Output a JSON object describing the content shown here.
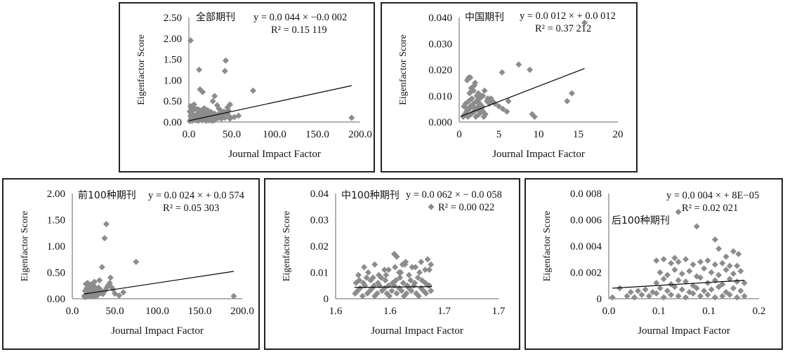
{
  "colors": {
    "marker": "#8c8c8c",
    "trend": "#000000",
    "axis": "#666666",
    "border": "#222222"
  },
  "chart_data": [
    {
      "type": "scatter",
      "title": "全部期刊",
      "equation": "y = 0.0 044 × −0.0 002",
      "r2": "R² = 0.15 119",
      "xlabel": "Journal Impact Factor",
      "ylabel": "Eigenfactor Score",
      "xlim": [
        0,
        200
      ],
      "ylim": [
        0,
        2.5
      ],
      "xticks": [
        "0.0",
        "50.0",
        "100.0",
        "150.0",
        "200.0"
      ],
      "yticks": [
        "0.00",
        "0.50",
        "1.00",
        "1.50",
        "2.00",
        "2.50"
      ],
      "trendline": [
        [
          0,
          0.03
        ],
        [
          190,
          0.87
        ]
      ],
      "x": [
        1,
        2,
        3,
        4,
        5,
        6,
        7,
        8,
        9,
        10,
        11,
        12,
        13,
        14,
        15,
        16,
        17,
        18,
        19,
        20,
        21,
        22,
        23,
        24,
        25,
        26,
        27,
        28,
        29,
        30,
        2,
        3,
        4,
        6,
        8,
        10,
        12,
        14,
        16,
        18,
        20,
        22,
        24,
        26,
        28,
        30,
        32,
        34,
        36,
        38,
        40,
        42,
        45,
        48,
        1,
        5,
        9,
        13,
        17,
        21,
        3,
        7,
        11,
        15,
        19,
        23,
        27,
        2,
        6,
        10,
        14,
        18,
        22,
        26,
        30,
        34,
        4,
        8,
        12,
        16,
        20,
        24,
        28,
        2,
        12,
        13,
        30,
        43,
        42,
        45,
        48,
        46,
        41,
        38,
        30,
        35,
        53,
        48,
        75,
        190,
        58,
        36,
        28,
        33,
        16
      ],
      "y": [
        0.02,
        0.05,
        0.08,
        0.03,
        0.1,
        0.06,
        0.12,
        0.04,
        0.07,
        0.09,
        0.03,
        0.05,
        0.11,
        0.06,
        0.08,
        0.04,
        0.07,
        0.1,
        0.05,
        0.03,
        0.06,
        0.09,
        0.04,
        0.07,
        0.05,
        0.08,
        0.03,
        0.06,
        0.04,
        0.05,
        0.15,
        0.18,
        0.2,
        0.14,
        0.16,
        0.19,
        0.13,
        0.17,
        0.21,
        0.15,
        0.12,
        0.18,
        0.14,
        0.16,
        0.1,
        0.13,
        0.11,
        0.09,
        0.12,
        0.08,
        0.15,
        0.1,
        0.2,
        0.12,
        0.25,
        0.28,
        0.3,
        0.27,
        0.24,
        0.26,
        0.35,
        0.32,
        0.3,
        0.22,
        0.28,
        0.24,
        0.2,
        0.38,
        0.42,
        0.3,
        0.26,
        0.33,
        0.28,
        0.24,
        0.2,
        0.18,
        0.08,
        0.1,
        0.22,
        0.3,
        0.16,
        0.12,
        0.14,
        1.95,
        1.25,
        0.78,
        0.62,
        1.47,
        1.22,
        0.35,
        0.42,
        0.28,
        0.25,
        0.22,
        0.18,
        0.32,
        0.12,
        0.08,
        0.75,
        0.1,
        0.15,
        0.3,
        0.5,
        0.4,
        0.72
      ]
    },
    {
      "type": "scatter",
      "title": "中国期刊",
      "equation": "y = 0.0 012 × + 0.0 012",
      "r2": "R² = 0.37 212",
      "xlabel": "Journal Impact Factor",
      "ylabel": "Eigenfactor Score",
      "xlim": [
        0,
        20
      ],
      "ylim": [
        0,
        0.04
      ],
      "xticks": [
        "0",
        "5",
        "10",
        "15",
        "20"
      ],
      "yticks": [
        "0.000",
        "0.010",
        "0.020",
        "0.030",
        "0.040"
      ],
      "trendline": [
        [
          0.2,
          0.0022
        ],
        [
          15.8,
          0.0205
        ]
      ],
      "x": [
        0.5,
        0.7,
        0.9,
        1.1,
        1.3,
        1.5,
        1.7,
        1.9,
        2.1,
        2.3,
        2.5,
        2.7,
        2.9,
        3.1,
        3.3,
        0.6,
        0.8,
        1.0,
        1.2,
        1.4,
        1.6,
        1.8,
        2.0,
        2.2,
        2.4,
        2.6,
        2.8,
        3.0,
        1.3,
        1.8,
        2.2,
        2.6,
        1.5,
        1.9,
        2.4,
        3.0,
        3.5,
        4.0,
        4.5,
        5.0,
        5.5,
        6.0,
        1.0,
        1.4,
        2.0,
        3.2,
        3.8,
        4.2,
        2.8,
        1.2,
        1.6,
        5.4,
        6.2,
        3.6,
        7.5,
        8.9,
        9.2,
        9.5,
        13.6,
        14.2,
        15.8
      ],
      "y": [
        0.002,
        0.003,
        0.004,
        0.002,
        0.005,
        0.003,
        0.006,
        0.004,
        0.002,
        0.005,
        0.003,
        0.004,
        0.006,
        0.002,
        0.003,
        0.006,
        0.007,
        0.005,
        0.008,
        0.006,
        0.009,
        0.007,
        0.005,
        0.008,
        0.006,
        0.007,
        0.005,
        0.004,
        0.011,
        0.012,
        0.01,
        0.009,
        0.013,
        0.014,
        0.011,
        0.01,
        0.008,
        0.009,
        0.007,
        0.006,
        0.005,
        0.004,
        0.016,
        0.017,
        0.015,
        0.012,
        0.007,
        0.008,
        0.01,
        0.017,
        0.012,
        0.019,
        0.008,
        0.009,
        0.022,
        0.02,
        0.003,
        0.002,
        0.008,
        0.011,
        0.038
      ]
    },
    {
      "type": "scatter",
      "title": "前100种期刊",
      "equation": "y = 0.0 024 × + 0.0 574",
      "r2": "R² = 0.05 303",
      "xlabel": "Journal Impact Factor",
      "ylabel": "Eigenfactor Score",
      "xlim": [
        0,
        200
      ],
      "ylim": [
        0,
        2.0
      ],
      "xticks": [
        "0.0",
        "50.0",
        "100.0",
        "150.0",
        "200.0"
      ],
      "yticks": [
        "0.00",
        "0.50",
        "1.00",
        "1.50",
        "2.00"
      ],
      "trendline": [
        [
          14,
          0.09
        ],
        [
          190,
          0.52
        ]
      ],
      "x": [
        14,
        15,
        16,
        17,
        18,
        19,
        20,
        21,
        22,
        23,
        24,
        25,
        26,
        27,
        28,
        29,
        30,
        15,
        17,
        19,
        21,
        23,
        25,
        27,
        29,
        31,
        33,
        35,
        16,
        18,
        20,
        22,
        24,
        26,
        28,
        30,
        32,
        34,
        36,
        38,
        40,
        42,
        44,
        46,
        48,
        50,
        55,
        60,
        38,
        40,
        35,
        75,
        190,
        45,
        32,
        26,
        19
      ],
      "y": [
        0.05,
        0.03,
        0.08,
        0.04,
        0.1,
        0.06,
        0.12,
        0.05,
        0.09,
        0.07,
        0.04,
        0.11,
        0.06,
        0.08,
        0.05,
        0.1,
        0.07,
        0.15,
        0.2,
        0.18,
        0.22,
        0.16,
        0.25,
        0.19,
        0.14,
        0.21,
        0.17,
        0.12,
        0.28,
        0.3,
        0.24,
        0.27,
        0.2,
        0.23,
        0.18,
        0.15,
        0.13,
        0.11,
        0.09,
        0.14,
        0.2,
        0.25,
        0.3,
        0.22,
        0.18,
        0.1,
        0.06,
        0.12,
        1.15,
        1.42,
        0.6,
        0.7,
        0.05,
        0.4,
        0.35,
        0.32,
        0.25
      ]
    },
    {
      "type": "scatter",
      "title": "中100种期刊",
      "equation": "y = 0.0 062 × − 0.0 058",
      "r2": "R² = 0.00 022",
      "xlabel": "Journal Impact Factor",
      "ylabel": "Eigenfactor Score",
      "xlim": [
        1.55,
        1.75
      ],
      "ylim": [
        0,
        0.04
      ],
      "xticks": [
        "1.6",
        "1.6",
        "1.7",
        "1.7"
      ],
      "yticks": [
        "0",
        "0.01",
        "0.02",
        "0.03",
        "0.04"
      ],
      "trendline": [
        [
          1.573,
          0.0043
        ],
        [
          1.668,
          0.0046
        ]
      ],
      "x": [
        1.574,
        1.577,
        1.58,
        1.583,
        1.586,
        1.589,
        1.592,
        1.595,
        1.598,
        1.601,
        1.604,
        1.607,
        1.61,
        1.613,
        1.616,
        1.619,
        1.622,
        1.625,
        1.628,
        1.631,
        1.634,
        1.637,
        1.64,
        1.643,
        1.646,
        1.649,
        1.652,
        1.655,
        1.658,
        1.661,
        1.664,
        1.667,
        1.575,
        1.579,
        1.584,
        1.588,
        1.593,
        1.597,
        1.602,
        1.606,
        1.611,
        1.615,
        1.62,
        1.624,
        1.629,
        1.633,
        1.638,
        1.642,
        1.647,
        1.651,
        1.656,
        1.66,
        1.665,
        1.578,
        1.59,
        1.603,
        1.615,
        1.628,
        1.64,
        1.653,
        1.665,
        1.585,
        1.598,
        1.61,
        1.623,
        1.635,
        1.648,
        1.66,
        1.622,
        1.625,
        1.632,
        1.636,
        1.644,
        1.655,
        1.663,
        1.667,
        1.596,
        1.612,
        1.63
      ],
      "y": [
        0.002,
        0.003,
        0.004,
        0.001,
        0.005,
        0.002,
        0.003,
        0.004,
        0.001,
        0.002,
        0.005,
        0.003,
        0.004,
        0.002,
        0.001,
        0.003,
        0.005,
        0.002,
        0.004,
        0.003,
        0.001,
        0.002,
        0.004,
        0.003,
        0.005,
        0.002,
        0.001,
        0.004,
        0.003,
        0.002,
        0.005,
        0.003,
        0.006,
        0.007,
        0.006,
        0.008,
        0.007,
        0.005,
        0.006,
        0.008,
        0.007,
        0.005,
        0.006,
        0.007,
        0.008,
        0.006,
        0.005,
        0.007,
        0.006,
        0.008,
        0.007,
        0.006,
        0.005,
        0.009,
        0.01,
        0.009,
        0.011,
        0.01,
        0.009,
        0.01,
        0.011,
        0.012,
        0.013,
        0.011,
        0.012,
        0.013,
        0.012,
        0.011,
        0.017,
        0.016,
        0.013,
        0.014,
        0.012,
        0.014,
        0.015,
        0.013,
        0.008,
        0.009,
        0.01
      ]
    },
    {
      "type": "scatter",
      "title": "后100种期刊",
      "equation": "y = 0.0 004 × + 8E−05",
      "r2": "R² = 0.02 021",
      "xlabel": "Journal Impact Factor",
      "ylabel": "Eigenfactor Score",
      "xlim": [
        -0.005,
        0.2
      ],
      "ylim": [
        0,
        0.008
      ],
      "xticks": [
        "0.0",
        "0.1",
        "0.1",
        "0.2"
      ],
      "yticks": [
        "0",
        "0.0 002",
        "0.0 004",
        "0.0 006",
        "0.0 008"
      ],
      "trendline": [
        [
          0,
          0.0008
        ],
        [
          0.18,
          0.0014
        ]
      ],
      "x": [
        0.0,
        0.02,
        0.03,
        0.04,
        0.05,
        0.06,
        0.07,
        0.08,
        0.09,
        0.1,
        0.11,
        0.12,
        0.13,
        0.14,
        0.15,
        0.16,
        0.17,
        0.18,
        0.01,
        0.025,
        0.035,
        0.045,
        0.055,
        0.065,
        0.075,
        0.085,
        0.095,
        0.105,
        0.115,
        0.125,
        0.135,
        0.145,
        0.155,
        0.165,
        0.175,
        0.06,
        0.07,
        0.08,
        0.09,
        0.1,
        0.11,
        0.12,
        0.13,
        0.14,
        0.15,
        0.16,
        0.17,
        0.18,
        0.065,
        0.075,
        0.085,
        0.095,
        0.105,
        0.115,
        0.125,
        0.135,
        0.145,
        0.155,
        0.165,
        0.175,
        0.06,
        0.08,
        0.1,
        0.12,
        0.14,
        0.16,
        0.07,
        0.09,
        0.11,
        0.13,
        0.15,
        0.17,
        0.09,
        0.115,
        0.14,
        0.145,
        0.165,
        0.172,
        0.085,
        0.155
      ],
      "y": [
        0.0001,
        0.0002,
        0.0001,
        0.0003,
        0.0002,
        0.0004,
        0.0001,
        0.0003,
        0.0002,
        0.0001,
        0.0004,
        0.0002,
        0.0003,
        0.0001,
        0.0002,
        0.0003,
        0.0001,
        0.0002,
        0.0008,
        0.0005,
        0.0006,
        0.0007,
        0.0005,
        0.0008,
        0.0006,
        0.0009,
        0.0007,
        0.0005,
        0.0008,
        0.0006,
        0.0007,
        0.0009,
        0.0005,
        0.0008,
        0.0006,
        0.0012,
        0.0015,
        0.0011,
        0.0014,
        0.0013,
        0.001,
        0.0016,
        0.0012,
        0.0014,
        0.0011,
        0.0015,
        0.0013,
        0.0012,
        0.002,
        0.0018,
        0.0022,
        0.0019,
        0.0021,
        0.0017,
        0.0023,
        0.002,
        0.0018,
        0.0022,
        0.0019,
        0.0021,
        0.0029,
        0.0027,
        0.003,
        0.0028,
        0.0026,
        0.0025,
        0.003,
        0.0028,
        0.0026,
        0.0029,
        0.0027,
        0.0025,
        0.0066,
        0.0055,
        0.0045,
        0.0038,
        0.0036,
        0.0034,
        0.0031,
        0.0032
      ]
    }
  ]
}
